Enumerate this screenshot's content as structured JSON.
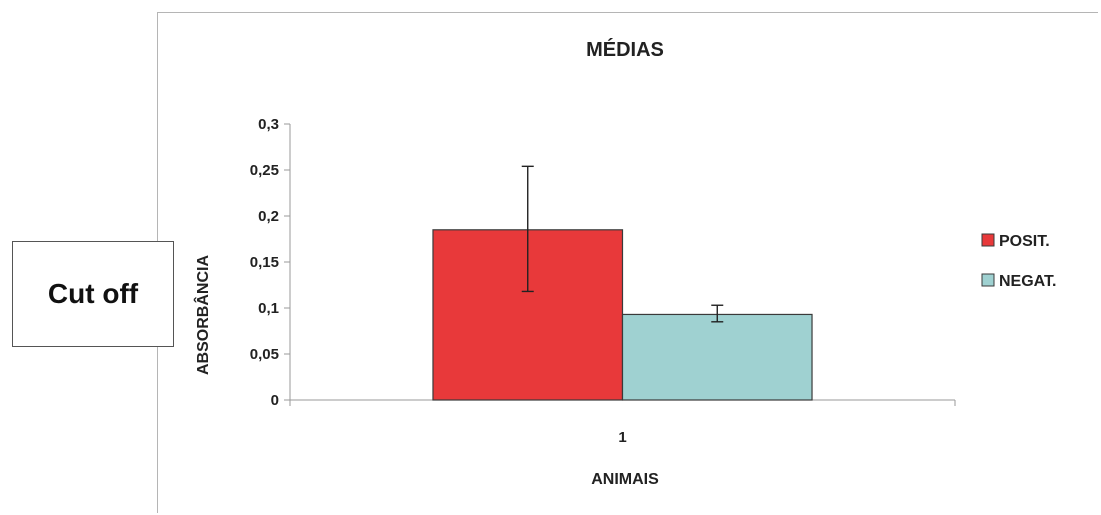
{
  "chart_data": {
    "type": "bar",
    "title": "MÉDIAS",
    "xlabel": "ANIMAIS",
    "ylabel": "ABSORBÂNCIA",
    "categories": [
      "1"
    ],
    "ylim": [
      0,
      0.3
    ],
    "yticks": [
      0,
      0.05,
      0.1,
      0.15,
      0.2,
      0.25,
      0.3
    ],
    "ytick_labels": [
      "0",
      "0,05",
      "0,1",
      "0,15",
      "0,2",
      "0,25",
      "0,3"
    ],
    "grid": false,
    "legend_position": "right",
    "series": [
      {
        "name": "POSIT.",
        "values": [
          0.185
        ],
        "error_low": [
          0.118
        ],
        "error_high": [
          0.254
        ],
        "color": "#e8393a"
      },
      {
        "name": "NEGAT.",
        "values": [
          0.093
        ],
        "error_low": [
          0.085
        ],
        "error_high": [
          0.103
        ],
        "color": "#9fd1d1"
      }
    ]
  },
  "annotation": {
    "label": "Cut off"
  }
}
